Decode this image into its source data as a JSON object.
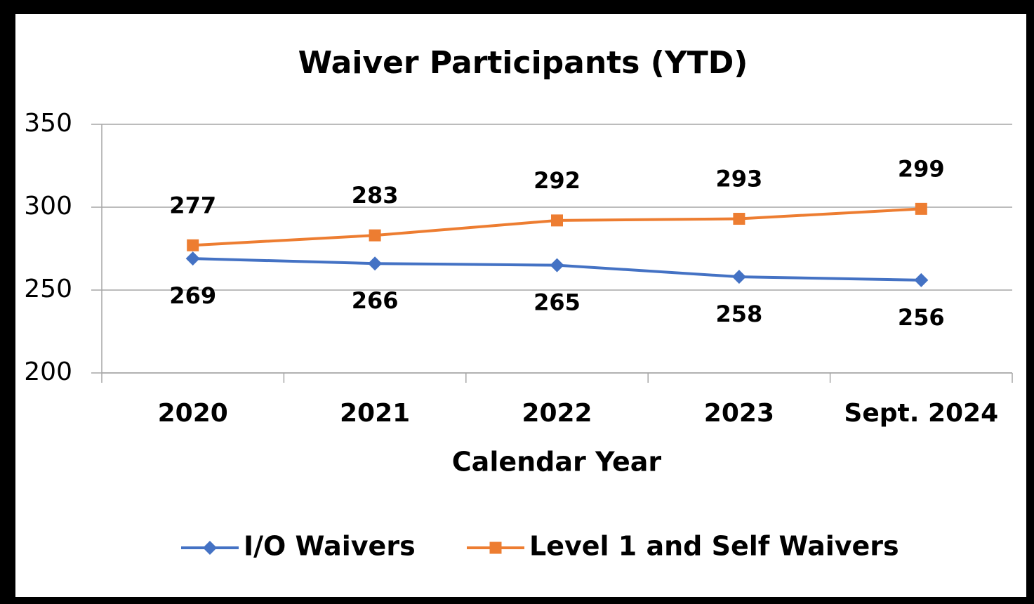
{
  "chart_data": {
    "type": "line",
    "title": "Waiver Participants (YTD)",
    "x_label": "Calendar Year",
    "categories": [
      "2020",
      "2021",
      "2022",
      "2023",
      "Sept. 2024"
    ],
    "series": [
      {
        "name": "I/O Waivers",
        "color": "#4472c4",
        "marker": "diamond",
        "values": [
          269,
          266,
          265,
          258,
          256
        ]
      },
      {
        "name": "Level 1 and Self Waivers",
        "color": "#ed7d31",
        "marker": "square",
        "values": [
          277,
          283,
          292,
          293,
          299
        ]
      }
    ],
    "ylim": [
      200,
      350
    ],
    "yticks": [
      200,
      250,
      300,
      350
    ],
    "grid": true,
    "legend": "bottom"
  }
}
